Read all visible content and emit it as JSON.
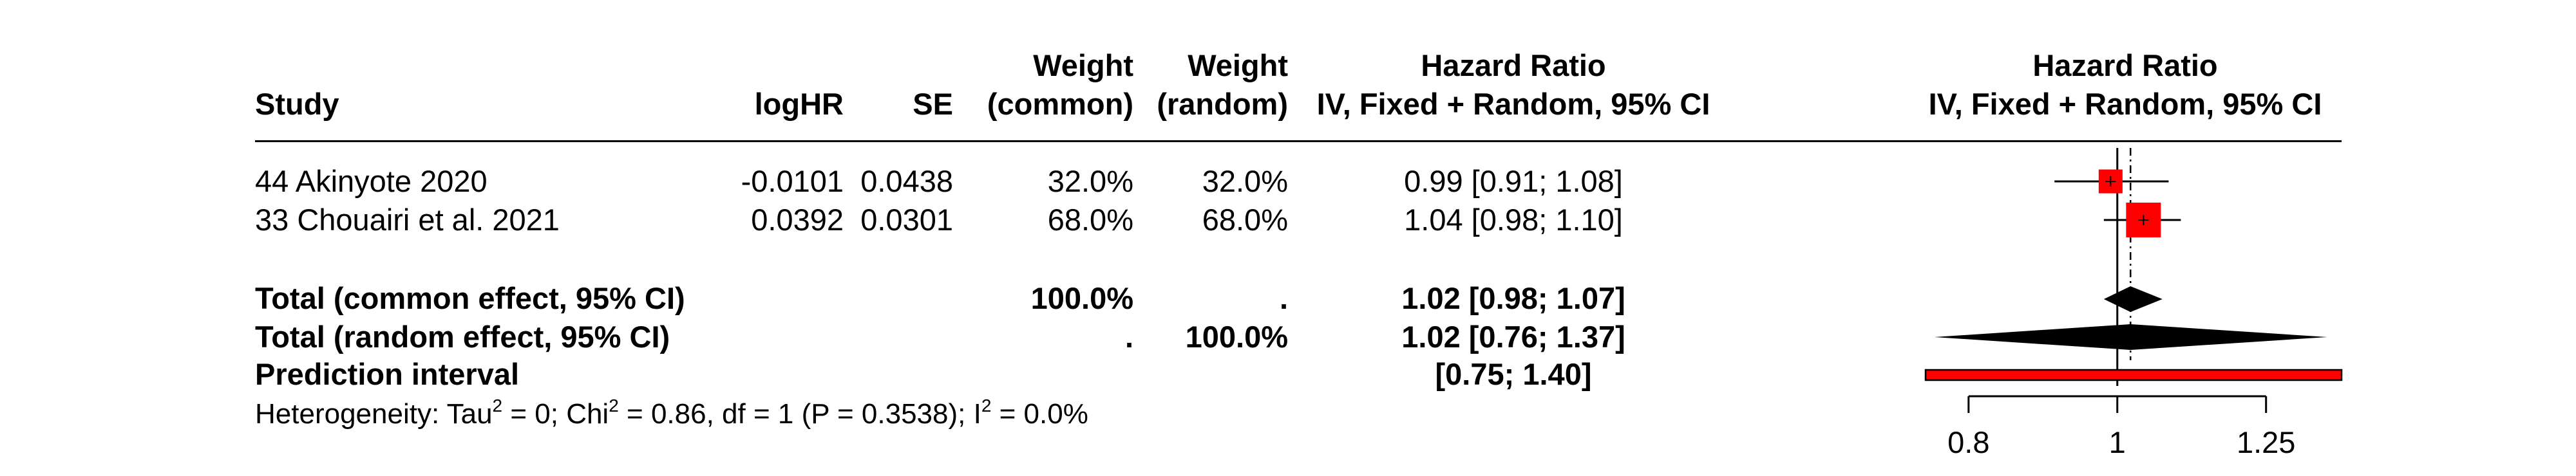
{
  "chart_data": {
    "type": "forest",
    "measure": "HR",
    "scale": "log",
    "columns": {
      "study": "Study",
      "loghr": "logHR",
      "se": "SE",
      "weight_common": [
        "Weight",
        "(common)"
      ],
      "weight_random": [
        "Weight",
        "(random)"
      ],
      "hr": [
        "Hazard Ratio",
        "IV, Fixed + Random, 95% CI"
      ],
      "plot": [
        "Hazard Ratio",
        "IV, Fixed + Random, 95% CI"
      ]
    },
    "studies": [
      {
        "label": "44 Akinyote 2020",
        "loghr": "-0.0101",
        "se": "0.0438",
        "weight_common": "32.0%",
        "weight_random": "32.0%",
        "ci_text": "0.99 [0.91; 1.08]",
        "hr": 0.99,
        "lower": 0.91,
        "upper": 1.08,
        "weight": 32.0
      },
      {
        "label": "33 Chouairi et al. 2021",
        "loghr": "0.0392",
        "se": "0.0301",
        "weight_common": "68.0%",
        "weight_random": "68.0%",
        "ci_text": "1.04 [0.98; 1.10]",
        "hr": 1.04,
        "lower": 0.98,
        "upper": 1.1,
        "weight": 68.0
      }
    ],
    "common": {
      "label": "Total (common effect, 95% CI)",
      "weight_common": "100.0%",
      "weight_random": ".",
      "ci_text": "1.02 [0.98; 1.07]",
      "hr": 1.02,
      "lower": 0.98,
      "upper": 1.07
    },
    "random": {
      "label": "Total (random effect, 95% CI)",
      "weight_common": ".",
      "weight_random": "100.0%",
      "ci_text": "1.02 [0.76; 1.37]",
      "hr": 1.02,
      "lower": 0.76,
      "upper": 1.37
    },
    "prediction": {
      "label": "Prediction interval",
      "ci_text": "[0.75; 1.40]",
      "lower": 0.75,
      "upper": 1.4
    },
    "heterogeneity": {
      "prefix": "Heterogeneity: Tau",
      "sup1": "2",
      "mid1": " = 0; Chi",
      "sup2": "2",
      "mid2": " = 0.86, df = 1 (P = 0.3538); I",
      "sup3": "2",
      "end": " = 0.0%"
    },
    "axis": {
      "ticks": [
        0.8,
        1,
        1.25
      ],
      "tick_labels": [
        "0.8",
        "1",
        "1.25"
      ],
      "xlim": [
        0.75,
        1.4
      ],
      "null_value": 1
    },
    "colors": {
      "square": "#ff0000",
      "prediction_fill": "#ff0000",
      "diamond": "#000000"
    }
  }
}
